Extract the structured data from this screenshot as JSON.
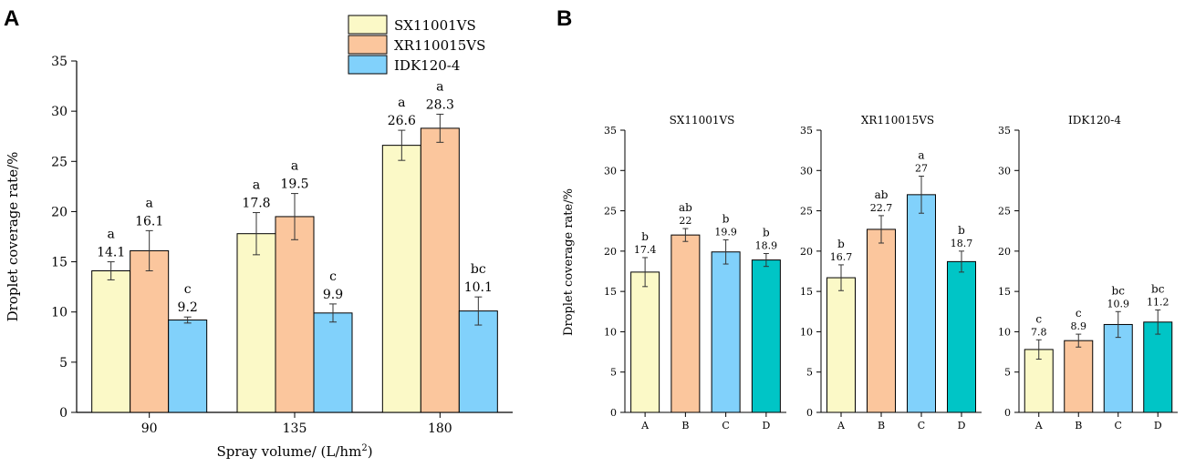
{
  "panel_labels": [
    "A",
    "B"
  ],
  "chart_data": [
    {
      "type": "bar",
      "title": "",
      "xlabel": "Spray volume/ (L/hm",
      "xlabel_sup": "2",
      "xlabel_close": ")",
      "ylabel": "Droplet coverage rate/%",
      "ylim": [
        0,
        35
      ],
      "yticks": [
        0,
        5,
        10,
        15,
        20,
        25,
        30,
        35
      ],
      "categories": [
        "90",
        "135",
        "180"
      ],
      "series": [
        {
          "name": "SX11001VS",
          "color": "#fbf9c7",
          "values": [
            14.1,
            17.8,
            26.6
          ],
          "errors": [
            0.9,
            2.1,
            1.5
          ],
          "labels": [
            "14.1",
            "17.8",
            "26.6"
          ],
          "letters": [
            "a",
            "a",
            "a"
          ]
        },
        {
          "name": "XR110015VS",
          "color": "#fbc69d",
          "values": [
            16.1,
            19.5,
            28.3
          ],
          "errors": [
            2.0,
            2.3,
            1.4
          ],
          "labels": [
            "16.1",
            "19.5",
            "28.3"
          ],
          "letters": [
            "a",
            "a",
            "a"
          ]
        },
        {
          "name": "IDK120-4",
          "color": "#81d1fb",
          "values": [
            9.2,
            9.9,
            10.1
          ],
          "errors": [
            0.3,
            0.9,
            1.4
          ],
          "labels": [
            "9.2",
            "9.9",
            "10.1"
          ],
          "letters": [
            "c",
            "c",
            "bc"
          ]
        }
      ]
    },
    {
      "type": "bar",
      "title": "SX11001VS",
      "ylabel": "Droplet coverage rate/%",
      "ylim": [
        0,
        35
      ],
      "yticks": [
        0,
        5,
        10,
        15,
        20,
        25,
        30,
        35
      ],
      "categories": [
        "A",
        "B",
        "C",
        "D"
      ],
      "colors": [
        "#fbf9c7",
        "#fbc69d",
        "#81d1fb",
        "#00c5c6"
      ],
      "values": [
        17.4,
        22.0,
        19.9,
        18.9
      ],
      "errors": [
        1.8,
        0.8,
        1.5,
        0.8
      ],
      "labels": [
        "17.4",
        "22",
        "19.9",
        "18.9"
      ],
      "letters": [
        "b",
        "ab",
        "b",
        "b"
      ]
    },
    {
      "type": "bar",
      "title": "XR110015VS",
      "ylim": [
        0,
        35
      ],
      "yticks": [
        0,
        5,
        10,
        15,
        20,
        25,
        30,
        35
      ],
      "categories": [
        "A",
        "B",
        "C",
        "D"
      ],
      "colors": [
        "#fbf9c7",
        "#fbc69d",
        "#81d1fb",
        "#00c5c6"
      ],
      "values": [
        16.7,
        22.7,
        27.0,
        18.7
      ],
      "errors": [
        1.6,
        1.7,
        2.3,
        1.3
      ],
      "labels": [
        "16.7",
        "22.7",
        "27",
        "18.7"
      ],
      "letters": [
        "b",
        "ab",
        "a",
        "b"
      ]
    },
    {
      "type": "bar",
      "title": "IDK120-4",
      "ylim": [
        0,
        35
      ],
      "yticks": [
        0,
        5,
        10,
        15,
        20,
        25,
        30,
        35
      ],
      "categories": [
        "A",
        "B",
        "C",
        "D"
      ],
      "colors": [
        "#fbf9c7",
        "#fbc69d",
        "#81d1fb",
        "#00c5c6"
      ],
      "values": [
        7.8,
        8.9,
        10.9,
        11.2
      ],
      "errors": [
        1.2,
        0.8,
        1.6,
        1.5
      ],
      "labels": [
        "7.8",
        "8.9",
        "10.9",
        "11.2"
      ],
      "letters": [
        "c",
        "c",
        "bc",
        "bc"
      ]
    }
  ]
}
